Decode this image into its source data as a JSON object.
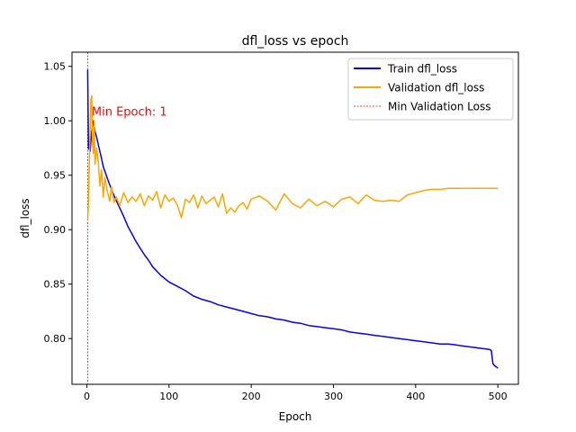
{
  "chart_data": {
    "type": "line",
    "title": "dfl_loss vs epoch",
    "xlabel": "Epoch",
    "ylabel": "dfl_loss",
    "xlim": [
      -18,
      525
    ],
    "ylim": [
      0.758,
      1.063
    ],
    "x_ticks": [
      0,
      100,
      200,
      300,
      400,
      500
    ],
    "y_ticks": [
      0.8,
      0.85,
      0.9,
      0.95,
      1.0,
      1.05
    ],
    "x_tick_labels": [
      "0",
      "100",
      "200",
      "300",
      "400",
      "500"
    ],
    "y_tick_labels": [
      "0.80",
      "0.85",
      "0.90",
      "0.95",
      "1.00",
      "1.05"
    ],
    "grid": false,
    "legend_position": "top-right",
    "series": [
      {
        "name": "Train dfl_loss",
        "color": "#0000ff",
        "x": [
          1,
          2,
          4,
          6,
          8,
          10,
          12,
          15,
          18,
          20,
          25,
          30,
          35,
          40,
          45,
          50,
          55,
          60,
          65,
          70,
          75,
          80,
          90,
          100,
          110,
          120,
          130,
          140,
          150,
          160,
          170,
          180,
          190,
          200,
          210,
          220,
          230,
          240,
          250,
          260,
          270,
          280,
          290,
          300,
          310,
          320,
          330,
          340,
          350,
          360,
          370,
          380,
          390,
          400,
          410,
          420,
          430,
          440,
          450,
          460,
          470,
          480,
          490,
          492,
          494,
          496,
          498,
          500
        ],
        "values": [
          1.047,
          0.975,
          0.972,
          0.99,
          1.0,
          0.99,
          0.985,
          0.975,
          0.965,
          0.958,
          0.947,
          0.937,
          0.928,
          0.92,
          0.912,
          0.903,
          0.896,
          0.889,
          0.883,
          0.877,
          0.872,
          0.866,
          0.858,
          0.852,
          0.848,
          0.844,
          0.839,
          0.836,
          0.834,
          0.831,
          0.829,
          0.827,
          0.825,
          0.823,
          0.821,
          0.82,
          0.818,
          0.817,
          0.815,
          0.814,
          0.812,
          0.811,
          0.81,
          0.809,
          0.808,
          0.806,
          0.805,
          0.804,
          0.803,
          0.802,
          0.801,
          0.8,
          0.799,
          0.798,
          0.797,
          0.796,
          0.795,
          0.795,
          0.794,
          0.793,
          0.792,
          0.791,
          0.79,
          0.789,
          0.777,
          0.775,
          0.774,
          0.773
        ]
      },
      {
        "name": "Validation dfl_loss",
        "color": "#ffa500",
        "x": [
          1,
          2,
          3,
          4,
          5,
          6,
          7,
          8,
          9,
          10,
          12,
          14,
          16,
          18,
          20,
          22,
          25,
          28,
          30,
          33,
          36,
          40,
          45,
          50,
          55,
          60,
          65,
          70,
          75,
          80,
          85,
          90,
          95,
          100,
          105,
          110,
          115,
          120,
          125,
          130,
          135,
          140,
          145,
          150,
          155,
          160,
          165,
          170,
          175,
          180,
          185,
          190,
          195,
          200,
          210,
          220,
          230,
          240,
          250,
          260,
          270,
          280,
          290,
          300,
          310,
          320,
          330,
          340,
          350,
          360,
          370,
          380,
          390,
          400,
          410,
          420,
          430,
          440,
          450,
          460,
          470,
          480,
          490,
          500
        ],
        "values": [
          0.908,
          0.925,
          0.96,
          0.99,
          1.02,
          1.023,
          0.98,
          0.97,
          1.0,
          0.96,
          0.975,
          0.962,
          0.94,
          0.955,
          0.93,
          0.948,
          0.935,
          0.926,
          0.94,
          0.925,
          0.93,
          0.922,
          0.934,
          0.925,
          0.93,
          0.926,
          0.933,
          0.922,
          0.931,
          0.927,
          0.935,
          0.92,
          0.932,
          0.926,
          0.929,
          0.923,
          0.911,
          0.928,
          0.925,
          0.932,
          0.92,
          0.931,
          0.924,
          0.927,
          0.93,
          0.921,
          0.933,
          0.915,
          0.92,
          0.916,
          0.922,
          0.925,
          0.919,
          0.928,
          0.931,
          0.926,
          0.918,
          0.933,
          0.924,
          0.92,
          0.928,
          0.922,
          0.926,
          0.921,
          0.928,
          0.93,
          0.924,
          0.932,
          0.927,
          0.926,
          0.927,
          0.926,
          0.932,
          0.934,
          0.936,
          0.937,
          0.937,
          0.938,
          0.938,
          0.938,
          0.938,
          0.938,
          0.938,
          0.938
        ]
      }
    ],
    "reference_lines": [
      {
        "name": "Min Validation Loss",
        "orientation": "vertical",
        "x": 1,
        "color": "#ff0000",
        "style": "dashed"
      }
    ],
    "annotations": [
      {
        "text": "Min Epoch: 1",
        "x": 6,
        "y": 1.008,
        "color": "#ff0000"
      }
    ]
  }
}
